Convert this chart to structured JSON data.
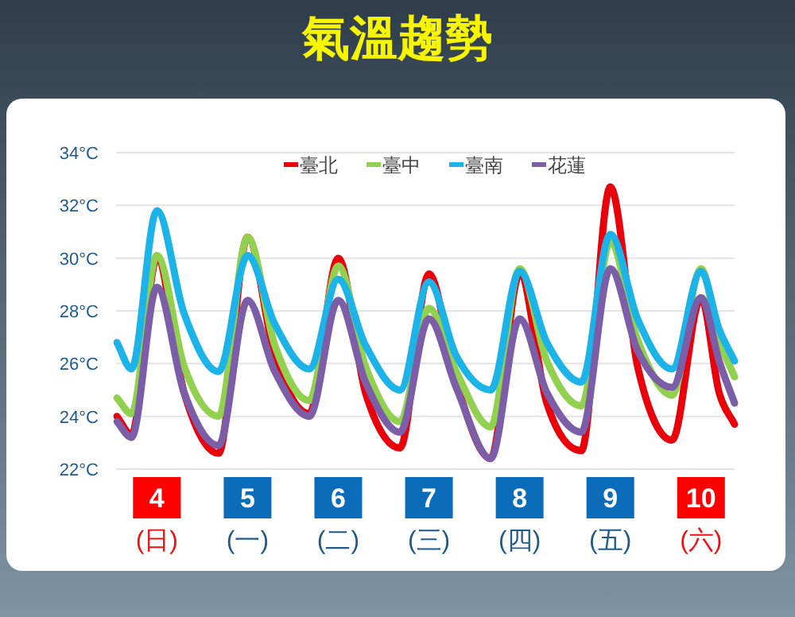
{
  "chart_data": {
    "type": "line",
    "title": "氣溫趨勢",
    "x": [
      3.56,
      3.72,
      4.0,
      4.3,
      4.68,
      5.0,
      5.3,
      5.68,
      6.0,
      6.3,
      6.68,
      7.0,
      7.3,
      7.68,
      8.0,
      8.3,
      8.68,
      9.0,
      9.3,
      9.68,
      10.0,
      10.2,
      10.37
    ],
    "series": [
      {
        "name": "臺北",
        "color": "#e8000b",
        "values": [
          24.0,
          23.3,
          30.0,
          24.9,
          22.6,
          30.8,
          26.3,
          24.1,
          30.0,
          24.9,
          22.8,
          29.4,
          25.3,
          22.4,
          29.4,
          24.5,
          22.7,
          32.7,
          25.9,
          23.1,
          28.5,
          24.9,
          23.7
        ]
      },
      {
        "name": "臺中",
        "color": "#92d050",
        "values": [
          24.7,
          24.1,
          30.1,
          25.9,
          24.0,
          30.8,
          26.7,
          24.6,
          29.7,
          25.9,
          23.8,
          28.1,
          25.7,
          23.6,
          29.6,
          26.1,
          24.4,
          30.6,
          26.9,
          24.8,
          29.6,
          26.9,
          25.5
        ]
      },
      {
        "name": "臺南",
        "color": "#1cb4e8",
        "values": [
          26.8,
          25.8,
          31.8,
          27.9,
          25.7,
          30.1,
          27.5,
          25.8,
          29.2,
          26.7,
          25.0,
          29.1,
          26.3,
          25.0,
          29.5,
          26.8,
          25.3,
          30.9,
          27.7,
          25.8,
          29.5,
          27.3,
          26.1
        ]
      },
      {
        "name": "花蓮",
        "color": "#7b5ea7",
        "values": [
          23.8,
          23.2,
          28.9,
          24.9,
          22.9,
          28.4,
          25.7,
          24.0,
          28.4,
          25.3,
          23.4,
          27.7,
          25.1,
          22.4,
          27.7,
          24.9,
          23.4,
          29.6,
          26.5,
          25.1,
          28.5,
          26.1,
          24.5
        ]
      }
    ],
    "xlim": [
      3.55,
      10.37
    ],
    "xticks": [
      {
        "value": 4,
        "label": "4\n(日)"
      },
      {
        "value": 5,
        "label": "5\n(一)"
      },
      {
        "value": 6,
        "label": "6\n(二)"
      },
      {
        "value": 7,
        "label": "7\n(三)"
      },
      {
        "value": 8,
        "label": "8\n(四)"
      },
      {
        "value": 9,
        "label": "9\n(五)"
      },
      {
        "value": 10,
        "label": "10\n(六)"
      }
    ],
    "ylim": [
      22,
      34
    ],
    "yticks": [
      {
        "value": 22,
        "label": "22°C"
      },
      {
        "value": 24,
        "label": "24°C"
      },
      {
        "value": 26,
        "label": "26°C"
      },
      {
        "value": 28,
        "label": "28°C"
      },
      {
        "value": 30,
        "label": "30°C"
      },
      {
        "value": 32,
        "label": "32°C"
      },
      {
        "value": 34,
        "label": "34°C"
      }
    ],
    "grid": "y",
    "legend": "top",
    "marker": "none",
    "line_style": "solid"
  }
}
